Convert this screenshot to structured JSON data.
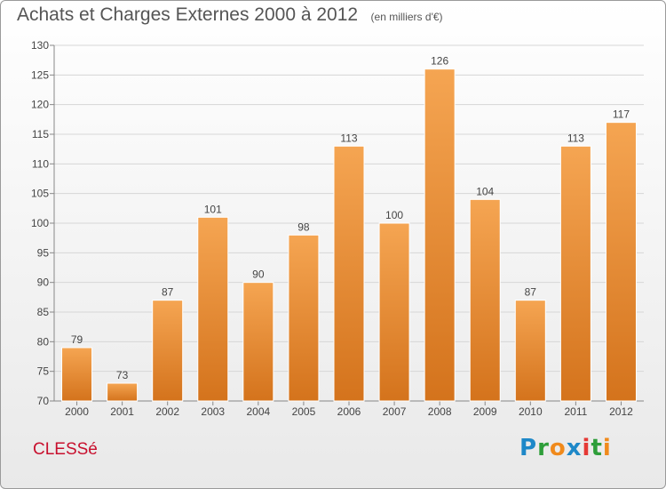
{
  "header": {
    "title": "Achats et Charges Externes 2000 à 2012",
    "unit": "(en milliers d'€)"
  },
  "footer": {
    "place_name": "CLESSé",
    "logo_letters": [
      {
        "char": "P",
        "color": "#1e88c8"
      },
      {
        "char": "r",
        "color": "#2e9e3a"
      },
      {
        "char": "o",
        "color": "#f08a1c"
      },
      {
        "char": "x",
        "color": "#1e88c8"
      },
      {
        "char": "i",
        "color": "#e53935"
      },
      {
        "char": "t",
        "color": "#2e9e3a"
      },
      {
        "char": "i",
        "color": "#f08a1c"
      }
    ]
  },
  "chart_data": {
    "type": "bar",
    "categories": [
      "2000",
      "2001",
      "2002",
      "2003",
      "2004",
      "2005",
      "2006",
      "2007",
      "2008",
      "2009",
      "2010",
      "2011",
      "2012"
    ],
    "values": [
      79,
      73,
      87,
      101,
      90,
      98,
      113,
      100,
      126,
      104,
      87,
      113,
      117
    ],
    "data_labels": [
      "79",
      "73",
      "87",
      "101",
      "90",
      "98",
      "113",
      "100",
      "126",
      "104",
      "87",
      "113",
      "117"
    ],
    "yticks": [
      "70",
      "75",
      "80",
      "85",
      "90",
      "95",
      "100",
      "105",
      "110",
      "115",
      "120",
      "125",
      "130"
    ],
    "ylim": [
      70,
      130
    ],
    "grid": true,
    "bar_color_top": "#f5a552",
    "bar_color_bottom": "#d4731c",
    "bar_edge_color": "#ffffff"
  }
}
